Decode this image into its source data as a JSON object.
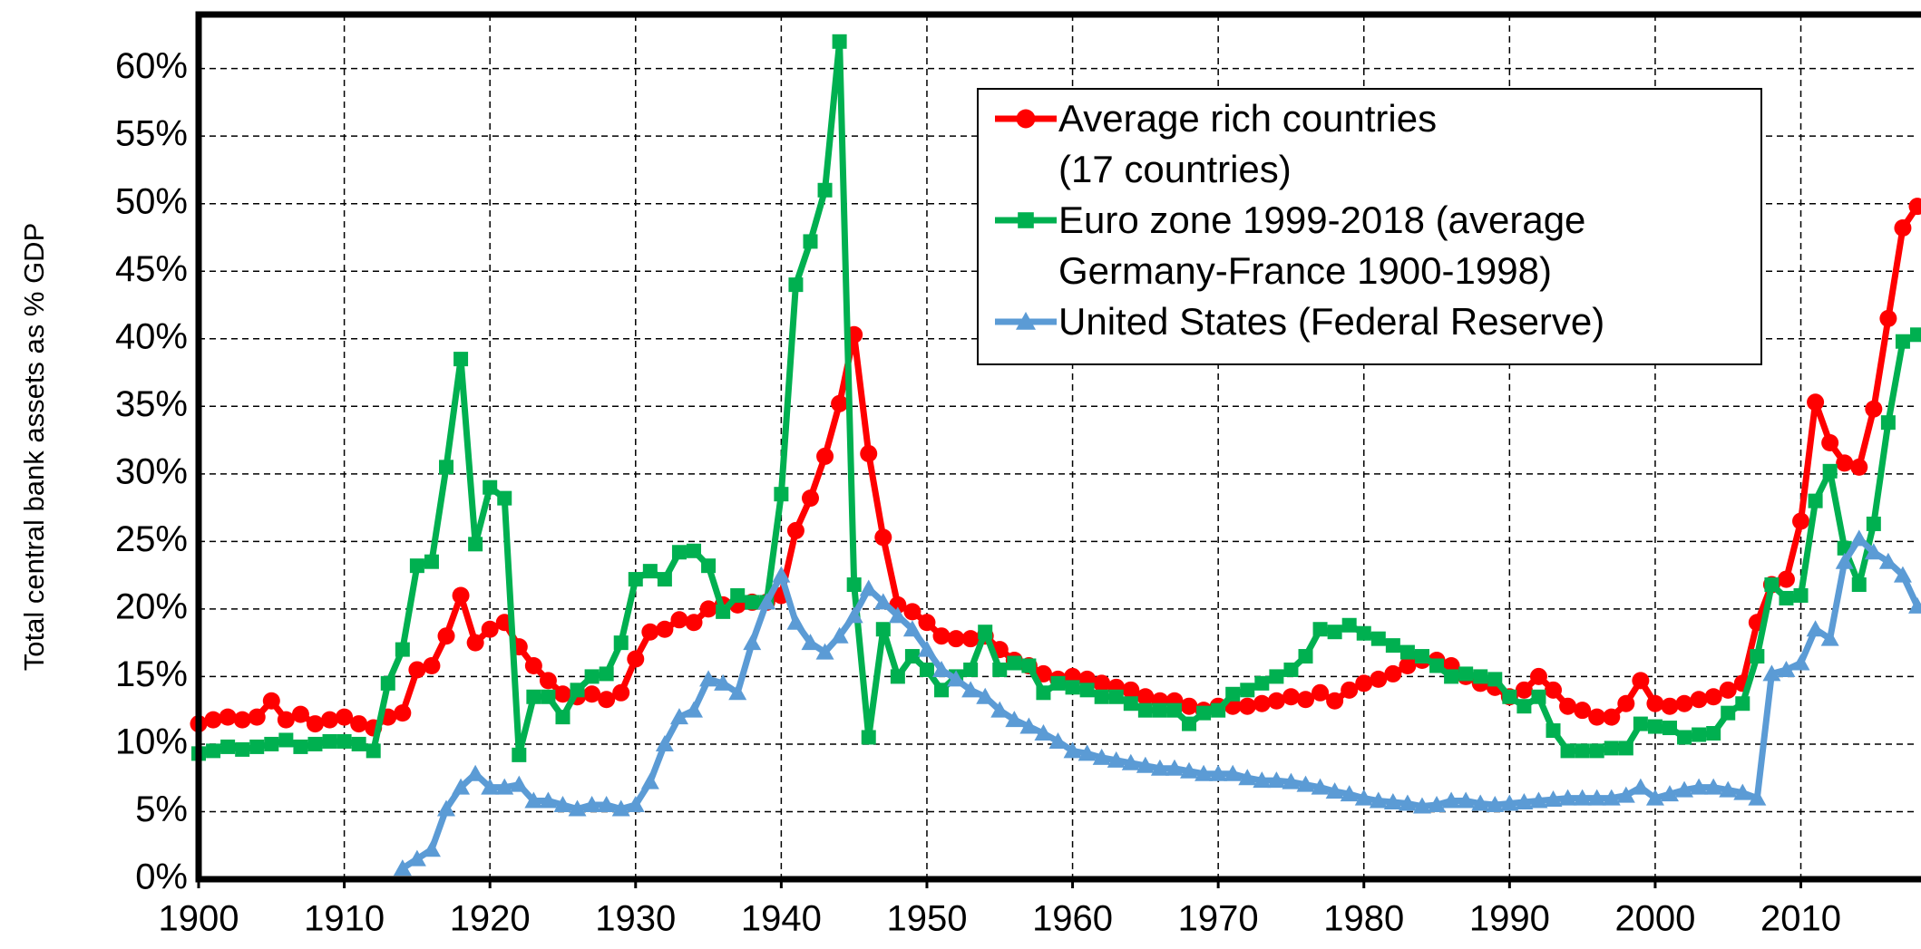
{
  "chart_data": {
    "type": "line",
    "y_label": "Total central bank assets as % GDP",
    "x": [
      1900,
      1901,
      1902,
      1903,
      1904,
      1905,
      1906,
      1907,
      1908,
      1909,
      1910,
      1911,
      1912,
      1913,
      1914,
      1915,
      1916,
      1917,
      1918,
      1919,
      1920,
      1921,
      1922,
      1923,
      1924,
      1925,
      1926,
      1927,
      1928,
      1929,
      1930,
      1931,
      1932,
      1933,
      1934,
      1935,
      1936,
      1937,
      1938,
      1939,
      1940,
      1941,
      1942,
      1943,
      1944,
      1945,
      1946,
      1947,
      1948,
      1949,
      1950,
      1951,
      1952,
      1953,
      1954,
      1955,
      1956,
      1957,
      1958,
      1959,
      1960,
      1961,
      1962,
      1963,
      1964,
      1965,
      1966,
      1967,
      1968,
      1969,
      1970,
      1971,
      1972,
      1973,
      1974,
      1975,
      1976,
      1977,
      1978,
      1979,
      1980,
      1981,
      1982,
      1983,
      1984,
      1985,
      1986,
      1987,
      1988,
      1989,
      1990,
      1991,
      1992,
      1993,
      1994,
      1995,
      1996,
      1997,
      1998,
      1999,
      2000,
      2001,
      2002,
      2003,
      2004,
      2005,
      2006,
      2007,
      2008,
      2009,
      2010,
      2011,
      2012,
      2013,
      2014,
      2015,
      2016,
      2017,
      2018
    ],
    "series": [
      {
        "name": "Average rich countries\n(17 countries)",
        "color": "#ff0000",
        "marker": "circle",
        "values": [
          11.5,
          11.8,
          12,
          11.8,
          12,
          13.2,
          11.8,
          12.2,
          11.5,
          11.8,
          12,
          11.5,
          11.2,
          12,
          12.3,
          15.5,
          15.8,
          18,
          21,
          17.5,
          18.5,
          19,
          17.2,
          15.8,
          14.7,
          13.7,
          13.5,
          13.7,
          13.3,
          13.8,
          16.3,
          18.3,
          18.5,
          19.2,
          19,
          20,
          20.3,
          20.3,
          20.5,
          20.5,
          21,
          25.8,
          28.2,
          31.3,
          35.2,
          40.3,
          31.5,
          25.3,
          20.3,
          19.8,
          19,
          18,
          17.8,
          17.8,
          18,
          17,
          16.2,
          15.8,
          15.2,
          14.8,
          15,
          14.8,
          14.5,
          14.2,
          14,
          13.5,
          13.2,
          13.2,
          12.8,
          12.5,
          12.8,
          12.8,
          12.8,
          13,
          13.2,
          13.5,
          13.3,
          13.8,
          13.2,
          14,
          14.5,
          14.8,
          15.2,
          15.8,
          16.2,
          16.2,
          15.8,
          15,
          14.5,
          14.2,
          13.5,
          14,
          15,
          14,
          12.8,
          12.5,
          12,
          12,
          13,
          14.7,
          13,
          12.8,
          13,
          13.3,
          13.5,
          14,
          14.5,
          19,
          21.8,
          22.2,
          26.5,
          35.3,
          32.3,
          30.8,
          30.5,
          34.8,
          41.5,
          48.2,
          49.8
        ]
      },
      {
        "name": "Euro zone 1999-2018 (average\nGermany-France 1900-1998)",
        "color": "#00b050",
        "marker": "square",
        "values": [
          9.3,
          9.5,
          9.8,
          9.6,
          9.8,
          10,
          10.3,
          9.8,
          10,
          10.2,
          10.2,
          10,
          9.5,
          14.5,
          17,
          23.2,
          23.5,
          30.5,
          38.5,
          24.8,
          29,
          28.2,
          9.2,
          13.5,
          13.5,
          12,
          14,
          15,
          15.2,
          17.5,
          22.2,
          22.8,
          22.2,
          24.2,
          24.3,
          23.2,
          19.8,
          21,
          20.5,
          20.5,
          28.5,
          44,
          47.2,
          51,
          62,
          21.8,
          10.5,
          18.5,
          15,
          16.5,
          15.5,
          14,
          15,
          15.5,
          18.3,
          15.5,
          16,
          15.8,
          13.8,
          14.5,
          14.2,
          14,
          13.5,
          13.5,
          13,
          12.5,
          12.5,
          12.5,
          11.5,
          12.3,
          12.5,
          13.7,
          14,
          14.5,
          15,
          15.5,
          16.5,
          18.5,
          18.3,
          18.8,
          18.2,
          17.8,
          17.3,
          16.8,
          16.5,
          15.8,
          15,
          15.2,
          15,
          14.8,
          13.5,
          12.8,
          13.5,
          11,
          9.5,
          9.5,
          9.5,
          9.7,
          9.7,
          11.5,
          11.3,
          11.2,
          10.5,
          10.7,
          10.8,
          12.3,
          13,
          16.5,
          21.8,
          20.8,
          21,
          28,
          30.2,
          24.5,
          21.8,
          26.3,
          33.8,
          39.8,
          40.3
        ]
      },
      {
        "name": "United States (Federal Reserve)",
        "color": "#5b9bd5",
        "marker": "triangle",
        "values": [
          null,
          null,
          null,
          null,
          null,
          null,
          null,
          null,
          null,
          null,
          null,
          null,
          null,
          null,
          0.8,
          1.5,
          2.2,
          5.2,
          6.8,
          7.8,
          6.8,
          6.8,
          7,
          5.8,
          5.8,
          5.5,
          5.2,
          5.5,
          5.5,
          5.2,
          5.5,
          7.2,
          10,
          12,
          12.5,
          14.8,
          14.5,
          13.8,
          17.5,
          20.5,
          22.5,
          19,
          17.5,
          16.8,
          18,
          19.5,
          21.5,
          20.5,
          19.5,
          18.5,
          17,
          15.5,
          14.8,
          14,
          13.5,
          12.5,
          11.8,
          11.3,
          10.8,
          10.2,
          9.5,
          9.3,
          9,
          8.8,
          8.6,
          8.4,
          8.2,
          8.2,
          8,
          7.8,
          7.8,
          7.8,
          7.5,
          7.3,
          7.3,
          7.2,
          7,
          6.8,
          6.5,
          6.3,
          6,
          5.8,
          5.7,
          5.6,
          5.4,
          5.5,
          5.8,
          5.8,
          5.6,
          5.5,
          5.6,
          5.7,
          5.8,
          5.9,
          6,
          6,
          6,
          6,
          6.2,
          6.8,
          6,
          6.3,
          6.6,
          6.8,
          6.8,
          6.6,
          6.4,
          6,
          15.2,
          15.5,
          16,
          18.5,
          17.8,
          23.5,
          25.2,
          24.2,
          23.5,
          22.5,
          20.2
        ]
      }
    ],
    "xlim": [
      1900,
      2018
    ],
    "xticks": [
      1900,
      1910,
      1920,
      1930,
      1940,
      1950,
      1960,
      1970,
      1980,
      1990,
      2000,
      2010
    ],
    "ylim": [
      0,
      64
    ],
    "yticks": [
      {
        "value": 0,
        "label": "0%"
      },
      {
        "value": 5,
        "label": "5%"
      },
      {
        "value": 10,
        "label": "10%"
      },
      {
        "value": 15,
        "label": "15%"
      },
      {
        "value": 20,
        "label": "20%"
      },
      {
        "value": 25,
        "label": "25%"
      },
      {
        "value": 30,
        "label": "30%"
      },
      {
        "value": 35,
        "label": "35%"
      },
      {
        "value": 40,
        "label": "40%"
      },
      {
        "value": 45,
        "label": "45%"
      },
      {
        "value": 50,
        "label": "50%"
      },
      {
        "value": 55,
        "label": "55%"
      },
      {
        "value": 60,
        "label": "60%"
      }
    ],
    "grid": true,
    "legend": "upper right"
  }
}
